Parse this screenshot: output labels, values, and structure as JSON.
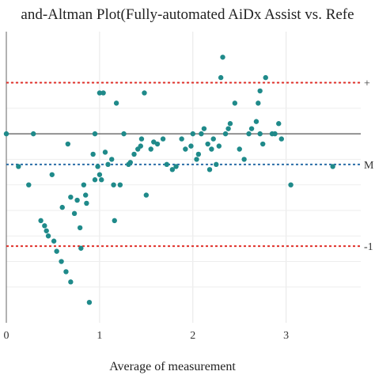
{
  "chart_data": {
    "type": "scatter",
    "title": "and-Altman Plot(Fully-automated AiDx Assist vs. Refe",
    "xlabel": "Average of measurement",
    "ylabel": "",
    "xlim": [
      0,
      3.8
    ],
    "ylim": [
      -1.85,
      1.0
    ],
    "x_ticks": [
      "0",
      "1",
      "2",
      "3"
    ],
    "x_tick_values": [
      0,
      1,
      2,
      3
    ],
    "grid": true,
    "zero_line": 0,
    "reference_lines": [
      {
        "label": "+",
        "y": 0.5,
        "color": "#e0302a",
        "style": "dotted"
      },
      {
        "label": "M",
        "y": -0.3,
        "color": "#2b6ea8",
        "style": "dotted"
      },
      {
        "label": "-1",
        "y": -1.1,
        "color": "#e0302a",
        "style": "dotted"
      }
    ],
    "point_color": "#1f8a8a",
    "points": [
      [
        0.0,
        0.0
      ],
      [
        0.13,
        -0.32
      ],
      [
        0.24,
        -0.5
      ],
      [
        0.29,
        0.0
      ],
      [
        0.37,
        -0.85
      ],
      [
        0.41,
        -0.9
      ],
      [
        0.43,
        -0.95
      ],
      [
        0.45,
        -1.0
      ],
      [
        0.49,
        -0.4
      ],
      [
        0.51,
        -1.05
      ],
      [
        0.54,
        -1.15
      ],
      [
        0.59,
        -1.25
      ],
      [
        0.6,
        -0.72
      ],
      [
        0.64,
        -1.35
      ],
      [
        0.66,
        -0.1
      ],
      [
        0.69,
        -0.62
      ],
      [
        0.69,
        -1.45
      ],
      [
        0.73,
        -0.78
      ],
      [
        0.76,
        -0.65
      ],
      [
        0.79,
        -0.92
      ],
      [
        0.8,
        -1.12
      ],
      [
        0.83,
        -0.5
      ],
      [
        0.85,
        -0.6
      ],
      [
        0.86,
        -0.68
      ],
      [
        0.89,
        -1.65
      ],
      [
        0.93,
        -0.2
      ],
      [
        0.95,
        0.0
      ],
      [
        0.95,
        -0.45
      ],
      [
        0.98,
        -0.32
      ],
      [
        1.0,
        -0.4
      ],
      [
        1.0,
        0.4
      ],
      [
        1.02,
        -0.45
      ],
      [
        1.04,
        0.4
      ],
      [
        1.06,
        -0.18
      ],
      [
        1.09,
        -0.3
      ],
      [
        1.13,
        -0.25
      ],
      [
        1.15,
        -0.5
      ],
      [
        1.16,
        -0.85
      ],
      [
        1.18,
        0.3
      ],
      [
        1.22,
        -0.5
      ],
      [
        1.26,
        0.0
      ],
      [
        1.31,
        -0.3
      ],
      [
        1.33,
        -0.28
      ],
      [
        1.37,
        -0.2
      ],
      [
        1.41,
        -0.15
      ],
      [
        1.44,
        -0.12
      ],
      [
        1.45,
        -0.05
      ],
      [
        1.48,
        0.4
      ],
      [
        1.5,
        -0.6
      ],
      [
        1.55,
        -0.15
      ],
      [
        1.58,
        -0.08
      ],
      [
        1.62,
        -0.1
      ],
      [
        1.68,
        -0.05
      ],
      [
        1.72,
        -0.3
      ],
      [
        1.78,
        -0.35
      ],
      [
        1.82,
        -0.32
      ],
      [
        1.88,
        -0.05
      ],
      [
        1.92,
        -0.15
      ],
      [
        1.98,
        -0.12
      ],
      [
        2.0,
        0.0
      ],
      [
        2.04,
        -0.25
      ],
      [
        2.06,
        -0.2
      ],
      [
        2.09,
        0.0
      ],
      [
        2.12,
        0.05
      ],
      [
        2.16,
        -0.1
      ],
      [
        2.18,
        -0.35
      ],
      [
        2.2,
        -0.15
      ],
      [
        2.22,
        -0.05
      ],
      [
        2.25,
        -0.3
      ],
      [
        2.28,
        -0.12
      ],
      [
        2.3,
        0.55
      ],
      [
        2.32,
        0.75
      ],
      [
        2.35,
        0.0
      ],
      [
        2.38,
        0.05
      ],
      [
        2.4,
        0.1
      ],
      [
        2.45,
        0.3
      ],
      [
        2.5,
        -0.15
      ],
      [
        2.55,
        -0.25
      ],
      [
        2.6,
        0.0
      ],
      [
        2.63,
        0.05
      ],
      [
        2.68,
        0.12
      ],
      [
        2.7,
        0.3
      ],
      [
        2.72,
        0.0
      ],
      [
        2.75,
        -0.1
      ],
      [
        2.78,
        0.55
      ],
      [
        2.85,
        0.0
      ],
      [
        2.88,
        0.0
      ],
      [
        2.92,
        0.1
      ],
      [
        2.95,
        -0.05
      ],
      [
        3.05,
        -0.5
      ],
      [
        3.5,
        -0.32
      ],
      [
        2.72,
        0.42
      ]
    ]
  },
  "right_labels": [
    {
      "label": "+",
      "y": 0.5
    },
    {
      "label": "M",
      "y": -0.3
    },
    {
      "label": "-1",
      "y": -1.1
    }
  ]
}
